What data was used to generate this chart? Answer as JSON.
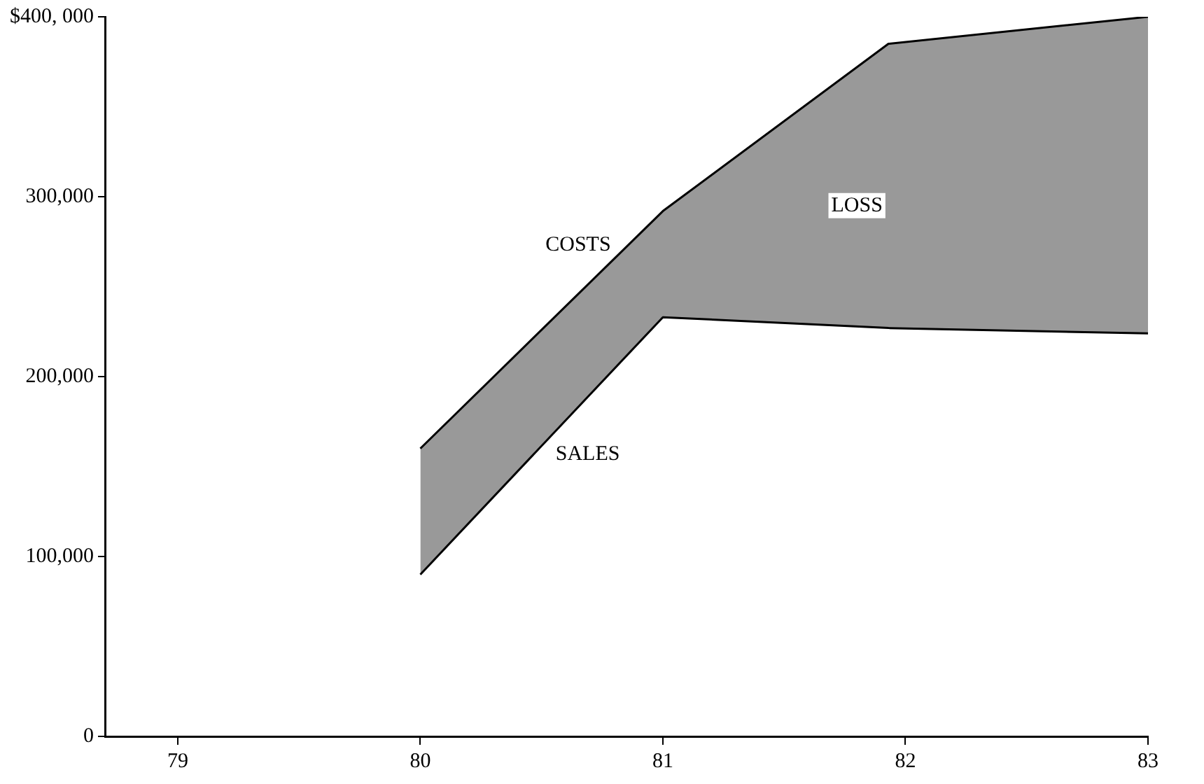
{
  "chart_data": {
    "type": "line",
    "xlim": [
      78.7,
      83
    ],
    "xticks": [
      79,
      80,
      81,
      82,
      83
    ],
    "ylim": [
      0,
      400000
    ],
    "yticks": [
      0,
      {
        "value": 100000,
        "label": "100,000"
      },
      {
        "value": 200000,
        "label": "200,000"
      },
      {
        "value": 300000,
        "label": "300,000"
      },
      {
        "value": 400000,
        "label": "$400, 000"
      }
    ],
    "series": [
      {
        "name": "COSTS",
        "type": "area",
        "color": "#000000",
        "x": [
          80,
          81,
          81.93,
          83
        ],
        "values": [
          160000,
          292000,
          385000,
          400000
        ]
      },
      {
        "name": "SALES",
        "color": "#000000",
        "x": [
          80,
          81,
          81.93,
          83
        ],
        "values": [
          90000,
          233000,
          227000,
          224000
        ]
      }
    ],
    "annotations": [
      {
        "text": "LOSS",
        "x": 81.8,
        "y": 295000
      }
    ],
    "grid": false,
    "legend": false,
    "marker": "none"
  }
}
